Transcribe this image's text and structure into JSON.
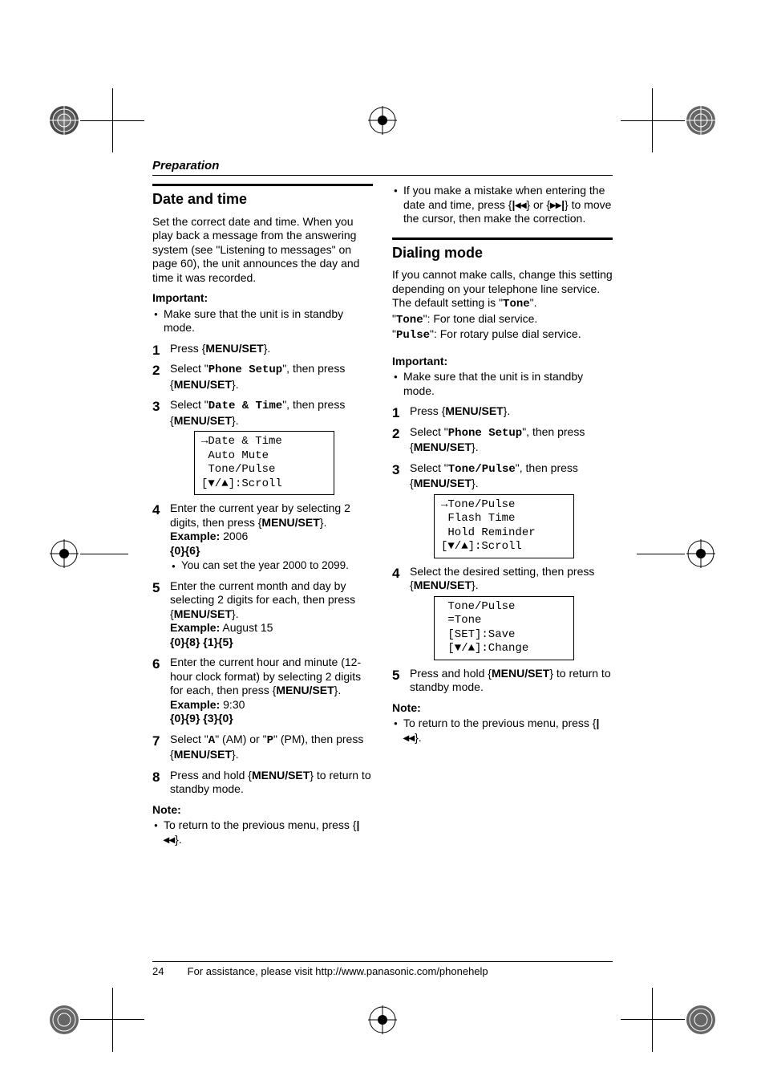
{
  "header": {
    "section": "Preparation"
  },
  "left": {
    "title": "Date and time",
    "intro": "Set the correct date and time. When you play back a message from the answering system (see \"Listening to messages\" on page 60), the unit announces the day and time it was recorded.",
    "important_label": "Important:",
    "important_items": [
      "Make sure that the unit is in standby mode."
    ],
    "steps": [
      {
        "n": "1",
        "html": "Press {MENU/SET}."
      },
      {
        "n": "2",
        "html": "Select \"<mono>Phone Setup</mono>\", then press {MENU/SET}."
      },
      {
        "n": "3",
        "html": "Select \"<mono>Date & Time</mono>\", then press {MENU/SET}.",
        "screen": [
          "→Date & Time",
          " Auto Mute",
          " Tone/Pulse",
          "[▼/▲]:Scroll"
        ]
      },
      {
        "n": "4",
        "html": "Enter the current year by selecting 2 digits, then press {MENU/SET}.",
        "example_label": "Example:",
        "example_val": "2006",
        "keys": "{0}{6}",
        "sub": [
          "You can set the year 2000 to 2099."
        ]
      },
      {
        "n": "5",
        "html": "Enter the current month and day by selecting 2 digits for each, then press {MENU/SET}.",
        "example_label": "Example:",
        "example_val": "August 15",
        "keys": "{0}{8} {1}{5}"
      },
      {
        "n": "6",
        "html": "Enter the current hour and minute (12-hour clock format) by selecting 2 digits for each, then press {MENU/SET}.",
        "example_label": "Example:",
        "example_val": "9:30",
        "keys": "{0}{9} {3}{0}"
      },
      {
        "n": "7",
        "html": "Select \"<mono>A</mono>\" (AM) or \"<mono>P</mono>\" (PM), then press {MENU/SET}."
      },
      {
        "n": "8",
        "html": "Press and hold {MENU/SET} to return to standby mode."
      }
    ],
    "note_label": "Note:",
    "note_items": [
      "To return to the previous menu, press {◂◂}."
    ]
  },
  "right": {
    "top_items": [
      "If you make a mistake when entering the date and time, press {◂◂} or {▸▸} to move the cursor, then make the correction."
    ],
    "title": "Dialing mode",
    "intro_lines": [
      "If you cannot make calls, change this setting depending on your telephone line service. The default setting is \"<mono>Tone</mono>\".",
      "\"<mono>Tone</mono>\":  For tone dial service.",
      "\"<mono>Pulse</mono>\":  For rotary pulse dial service."
    ],
    "important_label": "Important:",
    "important_items": [
      "Make sure that the unit is in standby mode."
    ],
    "steps": [
      {
        "n": "1",
        "html": "Press {MENU/SET}."
      },
      {
        "n": "2",
        "html": "Select \"<mono>Phone Setup</mono>\", then press {MENU/SET}."
      },
      {
        "n": "3",
        "html": "Select \"<mono>Tone/Pulse</mono>\", then press {MENU/SET}.",
        "screen": [
          "→Tone/Pulse",
          " Flash Time",
          " Hold Reminder",
          "[▼/▲]:Scroll"
        ]
      },
      {
        "n": "4",
        "html": "Select the desired setting, then press {MENU/SET}.",
        "screen": [
          " Tone/Pulse",
          " =Tone",
          " [SET]:Save",
          " [▼/▲]:Change"
        ]
      },
      {
        "n": "5",
        "html": "Press and hold {MENU/SET} to return to standby mode."
      }
    ],
    "note_label": "Note:",
    "note_items": [
      "To return to the previous menu, press {◂◂}."
    ]
  },
  "footer": {
    "page": "24",
    "text": "For assistance, please visit http://www.panasonic.com/phonehelp"
  },
  "buttons": {
    "menuset": "MENU/SET"
  }
}
